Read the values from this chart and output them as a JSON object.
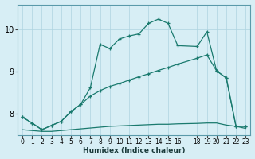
{
  "xlabel": "Humidex (Indice chaleur)",
  "background_color": "#d7eef5",
  "grid_color": "#b8dce8",
  "line_color": "#1a7a6e",
  "xlim": [
    -0.5,
    23.5
  ],
  "ylim": [
    7.5,
    10.6
  ],
  "yticks": [
    8,
    9,
    10
  ],
  "xticks": [
    0,
    1,
    2,
    3,
    4,
    5,
    6,
    7,
    8,
    9,
    10,
    11,
    12,
    13,
    14,
    15,
    16,
    18,
    19,
    20,
    21,
    22,
    23
  ],
  "line1_x": [
    0,
    1,
    2,
    3,
    4,
    5,
    6,
    7,
    8,
    9,
    10,
    11,
    12,
    13,
    14,
    15,
    16,
    18,
    19,
    20,
    21,
    22,
    23
  ],
  "line1_y": [
    7.92,
    7.78,
    7.62,
    7.72,
    7.82,
    8.05,
    8.22,
    8.62,
    9.65,
    9.55,
    9.78,
    9.85,
    9.9,
    10.15,
    10.25,
    10.15,
    9.62,
    9.6,
    9.95,
    9.02,
    8.85,
    7.7,
    7.7
  ],
  "line2_x": [
    0,
    1,
    2,
    3,
    4,
    5,
    6,
    7,
    8,
    9,
    10,
    11,
    12,
    13,
    14,
    15,
    16,
    18,
    19,
    20,
    21,
    22,
    23
  ],
  "line2_y": [
    7.92,
    7.78,
    7.62,
    7.72,
    7.82,
    8.05,
    8.22,
    8.42,
    8.55,
    8.65,
    8.72,
    8.8,
    8.88,
    8.95,
    9.03,
    9.1,
    9.18,
    9.32,
    9.4,
    9.02,
    8.85,
    7.7,
    7.7
  ],
  "line3_x": [
    0,
    1,
    2,
    3,
    4,
    5,
    6,
    7,
    8,
    9,
    10,
    11,
    12,
    13,
    14,
    15,
    16,
    18,
    19,
    20,
    21,
    22,
    23
  ],
  "line3_y": [
    7.62,
    7.6,
    7.58,
    7.58,
    7.6,
    7.62,
    7.64,
    7.66,
    7.68,
    7.7,
    7.71,
    7.72,
    7.73,
    7.74,
    7.75,
    7.75,
    7.76,
    7.77,
    7.78,
    7.78,
    7.73,
    7.7,
    7.65
  ]
}
